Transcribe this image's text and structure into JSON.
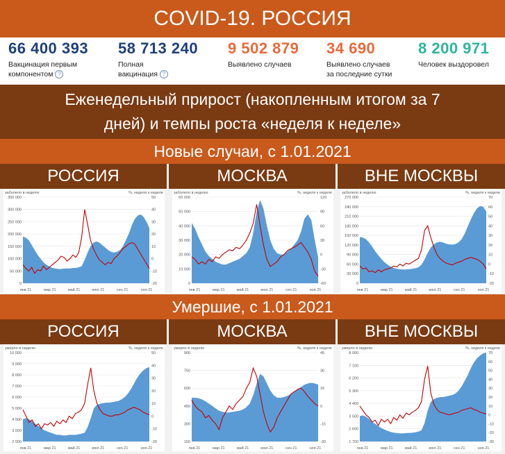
{
  "title": "COVID-19. РОССИЯ",
  "stats": [
    {
      "value": "66 400 393",
      "label1": "Вакцинация первым",
      "label2": "компонентом",
      "help": true,
      "color": "#1d3f7a"
    },
    {
      "value": "58 713 240",
      "label1": "Полная",
      "label2": "вакцинация",
      "help": true,
      "color": "#1d3f7a"
    },
    {
      "value": "9 502 879",
      "label1": "Выявлено случаев",
      "label2": "",
      "help": false,
      "color": "#e8693a"
    },
    {
      "value": "34 690",
      "label1": "Выявлено случаев",
      "label2": "за последние сутки",
      "help": false,
      "color": "#e8693a"
    },
    {
      "value": "8 200 971",
      "label1": "Человек выздоровел",
      "label2": "",
      "help": false,
      "color": "#2bb59a"
    }
  ],
  "help_glyph": "?",
  "subtitle_line1": "Еженедельный прирост (накопленным итогом за 7",
  "subtitle_line2": "дней) и темпы роста «неделя к неделе»",
  "section_cases": "Новые случаи, с 1.01.2021",
  "section_deaths": "Умершие, с 1.01.2021",
  "headers": [
    "РОССИЯ",
    "МОСКВА",
    "ВНЕ МОСКВЫ"
  ],
  "colors": {
    "area": "#5b9bd5",
    "line": "#c00000",
    "orange": "#c95a1c",
    "brown": "#7a3a12"
  },
  "chart_data": [
    {
      "type": "area",
      "panel": "Новые случаи — РОССИЯ",
      "left_label": "заболело в неделю",
      "right_label": "%, неделя к неделе",
      "x_ticks": [
        "янв 21",
        "мар 21",
        "май 21",
        "июл 21",
        "сен 21",
        "ноя 21"
      ],
      "y_left": {
        "min": 0,
        "max": 350000,
        "ticks": [
          "0",
          "50 000",
          "100 000",
          "150 000",
          "200 000",
          "250 000",
          "300 000",
          "350 000"
        ]
      },
      "y_right": {
        "min": -20,
        "max": 50,
        "ticks": [
          "-20",
          "-10",
          "0",
          "10",
          "20",
          "30",
          "40",
          "50"
        ]
      },
      "series": [
        {
          "name": "заболело в неделю",
          "axis": "left",
          "style": "area",
          "values": [
            190000,
            185000,
            175000,
            155000,
            135000,
            115000,
            100000,
            85000,
            75000,
            68000,
            62000,
            60000,
            58000,
            58000,
            60000,
            60000,
            60000,
            62000,
            62000,
            65000,
            70000,
            95000,
            125000,
            150000,
            165000,
            170000,
            165000,
            155000,
            145000,
            135000,
            128000,
            125000,
            128000,
            135000,
            150000,
            175000,
            200000,
            235000,
            260000,
            275000,
            280000,
            270000,
            250000,
            225000
          ]
        },
        {
          "name": "%, неделя к неделе",
          "axis": "right",
          "style": "line",
          "values": [
            -5,
            -8,
            -10,
            -7,
            -12,
            -9,
            -10,
            -6,
            -9,
            -7,
            -5,
            -3,
            -1,
            2,
            1,
            -2,
            0,
            3,
            1,
            5,
            18,
            40,
            28,
            15,
            8,
            3,
            -1,
            -3,
            -5,
            -3,
            -4,
            0,
            2,
            5,
            8,
            10,
            12,
            13,
            12,
            8,
            4,
            0,
            -4,
            -8
          ]
        }
      ]
    },
    {
      "type": "area",
      "panel": "Новые случаи — МОСКВА",
      "left_label": "заболело в неделю",
      "right_label": "%, неделя к неделе",
      "x_ticks": [
        "янв 21",
        "мар 21",
        "май 21",
        "июл 21",
        "сен 21",
        "ноя 21"
      ],
      "y_left": {
        "min": 0,
        "max": 60000,
        "ticks": [
          "0",
          "10 000",
          "20 000",
          "30 000",
          "40 000",
          "50 000",
          "60 000"
        ]
      },
      "y_right": {
        "min": -60,
        "max": 120,
        "ticks": [
          "-60",
          "-30",
          "0",
          "30",
          "60",
          "90",
          "120"
        ]
      },
      "series": [
        {
          "name": "заболело в неделю",
          "axis": "left",
          "style": "area",
          "values": [
            42000,
            38000,
            32000,
            27000,
            22000,
            19000,
            17000,
            15000,
            14000,
            13000,
            13000,
            14000,
            15000,
            16000,
            17000,
            19000,
            21000,
            25000,
            35000,
            50000,
            58000,
            52000,
            40000,
            30000,
            24000,
            21000,
            20000,
            20000,
            22000,
            24000,
            27000,
            30000,
            36000,
            45000,
            48000,
            44000,
            30000,
            18000
          ]
        },
        {
          "name": "%, неделя к неделе",
          "axis": "right",
          "style": "line",
          "values": [
            -5,
            -10,
            -20,
            -15,
            -20,
            -10,
            -15,
            -5,
            -8,
            0,
            5,
            10,
            8,
            15,
            12,
            20,
            30,
            45,
            65,
            105,
            60,
            20,
            -10,
            -25,
            -20,
            -15,
            -5,
            0,
            8,
            12,
            15,
            20,
            25,
            15,
            5,
            -10,
            -35,
            -45
          ]
        }
      ]
    },
    {
      "type": "area",
      "panel": "Новые случаи — ВНЕ МОСКВЫ",
      "left_label": "заболело в неделю",
      "right_label": "%, неделя к неделе",
      "x_ticks": [
        "янв 21",
        "мар 21",
        "май 21",
        "июл 21",
        "сен 21",
        "ноя 21"
      ],
      "y_left": {
        "min": 0,
        "max": 270000,
        "ticks": [
          "0",
          "30 000",
          "60 000",
          "90 000",
          "120 000",
          "150 000",
          "180 000",
          "210 000",
          "240 000",
          "270 000"
        ]
      },
      "y_right": {
        "min": -20,
        "max": 70,
        "ticks": [
          "-20",
          "-10",
          "0",
          "10",
          "20",
          "30",
          "40",
          "50",
          "60",
          "70"
        ]
      },
      "series": [
        {
          "name": "заболело в неделю",
          "axis": "left",
          "style": "area",
          "values": [
            145000,
            143000,
            138000,
            128000,
            115000,
            100000,
            88000,
            76000,
            66000,
            58000,
            52000,
            48000,
            45000,
            44000,
            43000,
            43000,
            44000,
            45000,
            47000,
            50000,
            58000,
            75000,
            95000,
            112000,
            122000,
            128000,
            130000,
            128000,
            124000,
            122000,
            121000,
            123000,
            128000,
            138000,
            155000,
            178000,
            200000,
            220000,
            235000,
            242000,
            240000,
            225000
          ]
        },
        {
          "name": "%, неделя к неделе",
          "axis": "right",
          "style": "line",
          "values": [
            -2,
            -5,
            -4,
            -8,
            -7,
            -9,
            -6,
            -8,
            -6,
            -5,
            -4,
            -2,
            -3,
            0,
            -2,
            1,
            0,
            2,
            4,
            6,
            15,
            35,
            40,
            28,
            18,
            10,
            6,
            3,
            1,
            0,
            -1,
            1,
            2,
            3,
            5,
            6,
            7,
            6,
            5,
            3,
            0,
            -5
          ]
        }
      ]
    },
    {
      "type": "area",
      "panel": "Умершие — РОССИЯ",
      "left_label": "умерло в неделю",
      "right_label": "%, неделя к неделе",
      "x_ticks": [
        "янв 21",
        "мар 21",
        "май 21",
        "июл 21",
        "сен 21",
        "ноя 21"
      ],
      "y_left": {
        "min": 2000,
        "max": 10000,
        "ticks": [
          "2 000",
          "3 000",
          "4 000",
          "5 000",
          "6 000",
          "7 000",
          "8 000",
          "9 000",
          "10 000"
        ]
      },
      "y_right": {
        "min": -20,
        "max": 50,
        "ticks": [
          "-20",
          "-10",
          "0",
          "10",
          "20",
          "30",
          "40",
          "50"
        ]
      },
      "series": [
        {
          "name": "умерло в неделю",
          "axis": "left",
          "style": "area",
          "values": [
            4000,
            4100,
            4000,
            3800,
            3600,
            3400,
            3200,
            3000,
            2900,
            2800,
            2700,
            2600,
            2600,
            2550,
            2550,
            2600,
            2600,
            2600,
            2650,
            2700,
            2800,
            3300,
            4100,
            5000,
            5300,
            5400,
            5450,
            5500,
            5500,
            5550,
            5600,
            5650,
            5800,
            6000,
            6300,
            6700,
            7200,
            7700,
            8100,
            8400,
            8600,
            8700
          ]
        },
        {
          "name": "%, неделя к неделе",
          "axis": "right",
          "style": "line",
          "values": [
            5,
            0,
            -5,
            -3,
            -8,
            -6,
            -10,
            -6,
            -7,
            -5,
            -8,
            -4,
            -6,
            -3,
            -5,
            0,
            -2,
            2,
            3,
            5,
            10,
            25,
            38,
            20,
            10,
            5,
            2,
            1,
            0,
            0,
            1,
            1,
            2,
            3,
            5,
            6,
            7,
            6,
            5,
            3,
            2,
            1
          ]
        }
      ]
    },
    {
      "type": "area",
      "panel": "Умершие — МОСКВА",
      "left_label": "умерло в неделю",
      "right_label": "%, неделя к неделе",
      "x_ticks": [
        "янв 21",
        "мар 21",
        "май 21",
        "июл 21",
        "сен 21",
        "ноя 21"
      ],
      "y_left": {
        "min": 150,
        "max": 900,
        "ticks": [
          "150",
          "300",
          "450",
          "600",
          "750",
          "900"
        ]
      },
      "y_right": {
        "min": -30,
        "max": 45,
        "ticks": [
          "-30",
          "-15",
          "0",
          "15",
          "30",
          "45"
        ]
      },
      "series": [
        {
          "name": "умерло в неделю",
          "axis": "left",
          "style": "area",
          "values": [
            520,
            520,
            515,
            505,
            490,
            470,
            450,
            430,
            410,
            400,
            395,
            395,
            400,
            405,
            410,
            420,
            440,
            470,
            540,
            640,
            720,
            700,
            640,
            580,
            540,
            520,
            520,
            525,
            535,
            550,
            570,
            590,
            610,
            630,
            640,
            645,
            640,
            630
          ]
        },
        {
          "name": "%, неделя к неделе",
          "axis": "right",
          "style": "line",
          "values": [
            5,
            0,
            -3,
            -5,
            -10,
            -8,
            -12,
            -15,
            -20,
            -10,
            -5,
            0,
            -3,
            2,
            5,
            8,
            15,
            20,
            32,
            25,
            10,
            -5,
            -15,
            -22,
            -18,
            -10,
            -5,
            0,
            5,
            10,
            12,
            14,
            15,
            12,
            8,
            5,
            2,
            0
          ]
        }
      ]
    },
    {
      "type": "area",
      "panel": "Умершие — ВНЕ МОСКВЫ",
      "left_label": "умерло в неделю",
      "right_label": "%, неделя к неделе",
      "x_ticks": [
        "янв 21",
        "мар 21",
        "май 21",
        "июл 21",
        "сен 21",
        "ноя 21"
      ],
      "y_left": {
        "min": 1700,
        "max": 8000,
        "ticks": [
          "1 700",
          "2 600",
          "3 500",
          "4 400",
          "5 300",
          "6 200",
          "7 100",
          "8 000"
        ]
      },
      "y_right": {
        "min": -30,
        "max": 70,
        "ticks": [
          "-30",
          "-20",
          "-10",
          "0",
          "10",
          "20",
          "30",
          "40",
          "50",
          "60",
          "70"
        ]
      },
      "series": [
        {
          "name": "умерло в неделю",
          "axis": "left",
          "style": "area",
          "values": [
            3500,
            3550,
            3450,
            3300,
            3100,
            2950,
            2800,
            2650,
            2550,
            2450,
            2380,
            2330,
            2300,
            2280,
            2280,
            2300,
            2300,
            2320,
            2350,
            2400,
            2500,
            3000,
            3900,
            4500,
            4700,
            4800,
            4850,
            4850,
            4900,
            4950,
            5000,
            5100,
            5300,
            5600,
            6000,
            6400,
            6900,
            7300,
            7600,
            7800,
            7950,
            8000
          ]
        },
        {
          "name": "%, неделя к неделе",
          "axis": "right",
          "style": "line",
          "values": [
            10,
            5,
            0,
            -3,
            -8,
            -6,
            -12,
            -5,
            -8,
            -5,
            -10,
            -3,
            -6,
            0,
            -4,
            2,
            0,
            3,
            5,
            8,
            15,
            40,
            55,
            25,
            12,
            6,
            3,
            2,
            1,
            0,
            1,
            2,
            3,
            5,
            6,
            7,
            8,
            6,
            5,
            3,
            2,
            1
          ]
        }
      ]
    }
  ]
}
